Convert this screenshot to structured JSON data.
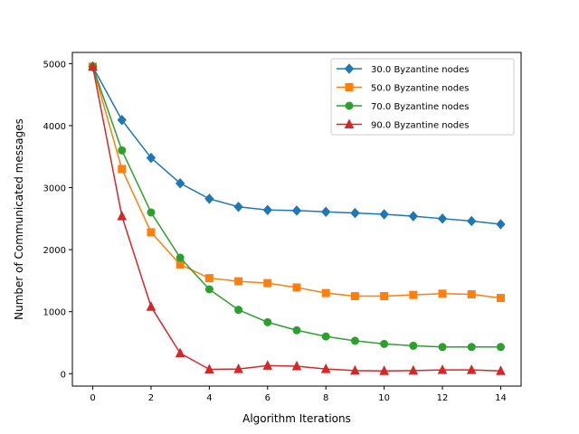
{
  "chart_data": {
    "type": "line",
    "title": "",
    "xlabel": "Algorithm Iterations",
    "ylabel": "Number of Communicated messages",
    "xlim": [
      -0.7,
      14.7
    ],
    "ylim": [
      -200,
      5180
    ],
    "xticks": [
      0,
      2,
      4,
      6,
      8,
      10,
      12,
      14
    ],
    "yticks": [
      0,
      1000,
      2000,
      3000,
      4000,
      5000
    ],
    "grid": false,
    "legend_position": "top-right",
    "x": [
      0,
      1,
      2,
      3,
      4,
      5,
      6,
      7,
      8,
      9,
      10,
      11,
      12,
      13,
      14
    ],
    "series": [
      {
        "name": "30.0 Byzantine nodes",
        "color": "#1f77b4",
        "marker": "diamond",
        "values": [
          4950,
          4090,
          3480,
          3070,
          2820,
          2690,
          2640,
          2630,
          2610,
          2590,
          2570,
          2540,
          2500,
          2460,
          2410
        ]
      },
      {
        "name": "50.0 Byzantine nodes",
        "color": "#ff7f0e",
        "marker": "square",
        "values": [
          4950,
          3300,
          2280,
          1760,
          1540,
          1490,
          1460,
          1390,
          1300,
          1250,
          1250,
          1270,
          1290,
          1280,
          1220
        ]
      },
      {
        "name": "70.0 Byzantine nodes",
        "color": "#2ca02c",
        "marker": "circle",
        "values": [
          4950,
          3600,
          2600,
          1870,
          1360,
          1030,
          830,
          700,
          600,
          530,
          480,
          450,
          430,
          430,
          430
        ]
      },
      {
        "name": "90.0 Byzantine nodes",
        "color": "#d62728",
        "marker": "triangle",
        "values": [
          4950,
          2540,
          1080,
          330,
          70,
          75,
          130,
          120,
          75,
          50,
          45,
          50,
          60,
          60,
          45
        ]
      }
    ]
  }
}
